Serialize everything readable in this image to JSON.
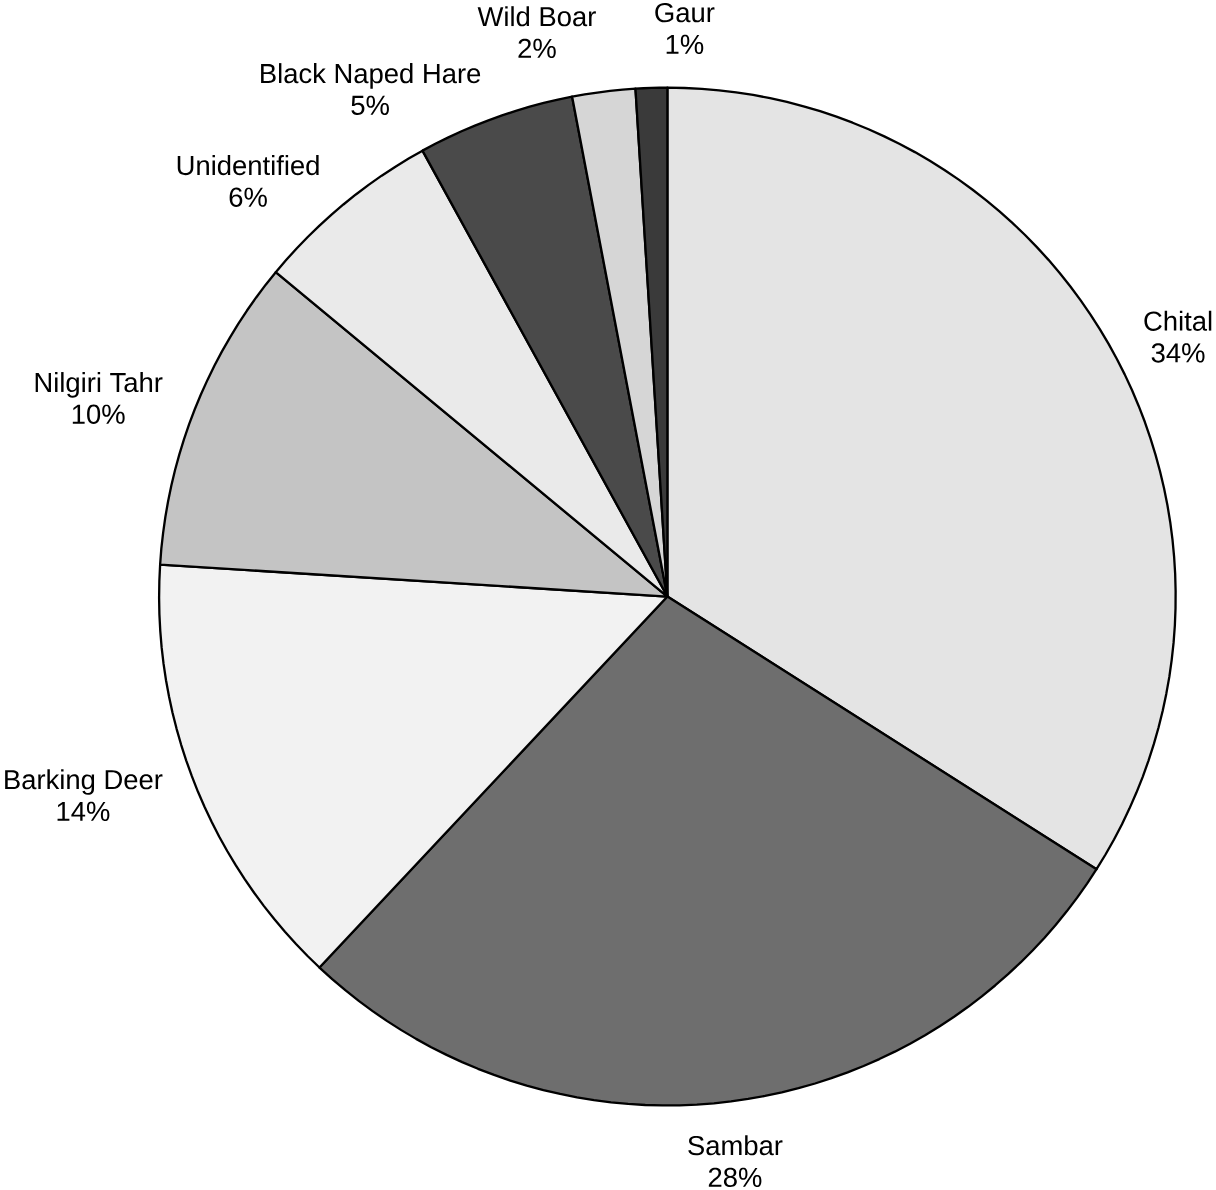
{
  "chart_data": {
    "type": "pie",
    "categories": [
      "Chital",
      "Sambar",
      "Barking Deer",
      "Nilgiri Tahr",
      "Unidentified",
      "Black Naped Hare",
      "Wild Boar",
      "Gaur"
    ],
    "values": [
      34,
      28,
      14,
      10,
      6,
      5,
      2,
      1
    ],
    "colors": [
      "#e4e4e4",
      "#6e6e6e",
      "#f2f2f2",
      "#c4c4c4",
      "#eaeaea",
      "#4a4a4a",
      "#d6d6d6",
      "#3a3a3a"
    ],
    "value_labels": [
      "34%",
      "28%",
      "14%",
      "10%",
      "6%",
      "5%",
      "2%",
      "1%"
    ]
  }
}
